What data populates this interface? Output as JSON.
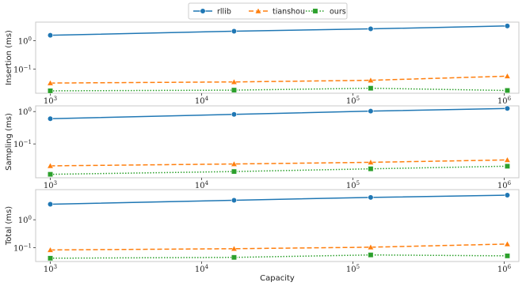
{
  "chart_data": {
    "type": "line",
    "xlabel": "Capacity",
    "x_scale": "log",
    "y_scale": "log",
    "x": [
      1000,
      16384,
      131072,
      1048576
    ],
    "x_ticks": [
      1000,
      10000,
      100000,
      1000000
    ],
    "x_tick_labels": [
      {
        "base": "10",
        "exp": "3"
      },
      {
        "base": "10",
        "exp": "4"
      },
      {
        "base": "10",
        "exp": "5"
      },
      {
        "base": "10",
        "exp": "6"
      }
    ],
    "grid": false,
    "legend": {
      "placement": "top-center",
      "entries": [
        {
          "name": "rllib",
          "color": "#1f77b4",
          "marker": "circle",
          "dash": "solid"
        },
        {
          "name": "tianshou",
          "color": "#ff7f0e",
          "marker": "triangle",
          "dash": "dashed"
        },
        {
          "name": "ours",
          "color": "#2ca02c",
          "marker": "square",
          "dash": "dotted"
        }
      ]
    },
    "panels": [
      {
        "ylabel": "Insertion (ms)",
        "ylim": [
          0.014,
          4.5
        ],
        "y_ticks": [
          {
            "value": 1,
            "base": "10",
            "exp": "0"
          },
          {
            "value": 0.1,
            "base": "10",
            "exp": "−1"
          }
        ],
        "series": [
          {
            "name": "rllib",
            "values": [
              1.55,
              2.15,
              2.6,
              3.3
            ]
          },
          {
            "name": "tianshou",
            "values": [
              0.032,
              0.035,
              0.04,
              0.056
            ]
          },
          {
            "name": "ours",
            "values": [
              0.017,
              0.018,
              0.021,
              0.0175
            ]
          }
        ]
      },
      {
        "ylabel": "Sampling (ms)",
        "ylim": [
          0.009,
          1.5
        ],
        "y_ticks": [
          {
            "value": 1,
            "base": "10",
            "exp": "0"
          },
          {
            "value": 0.1,
            "base": "10",
            "exp": "−1"
          }
        ],
        "series": [
          {
            "name": "rllib",
            "values": [
              0.6,
              0.82,
              1.03,
              1.25
            ]
          },
          {
            "name": "tianshou",
            "values": [
              0.021,
              0.024,
              0.027,
              0.032
            ]
          },
          {
            "name": "ours",
            "values": [
              0.0115,
              0.014,
              0.017,
              0.0205
            ]
          }
        ]
      },
      {
        "ylabel": "Total (ms)",
        "ylim": [
          0.032,
          12
        ],
        "y_ticks": [
          {
            "value": 1,
            "base": "10",
            "exp": "0"
          },
          {
            "value": 0.1,
            "base": "10",
            "exp": "−1"
          }
        ],
        "series": [
          {
            "name": "rllib",
            "values": [
              3.6,
              5.0,
              6.3,
              7.6
            ]
          },
          {
            "name": "tianshou",
            "values": [
              0.083,
              0.092,
              0.104,
              0.135
            ]
          },
          {
            "name": "ours",
            "values": [
              0.042,
              0.045,
              0.055,
              0.051
            ]
          }
        ]
      }
    ]
  }
}
